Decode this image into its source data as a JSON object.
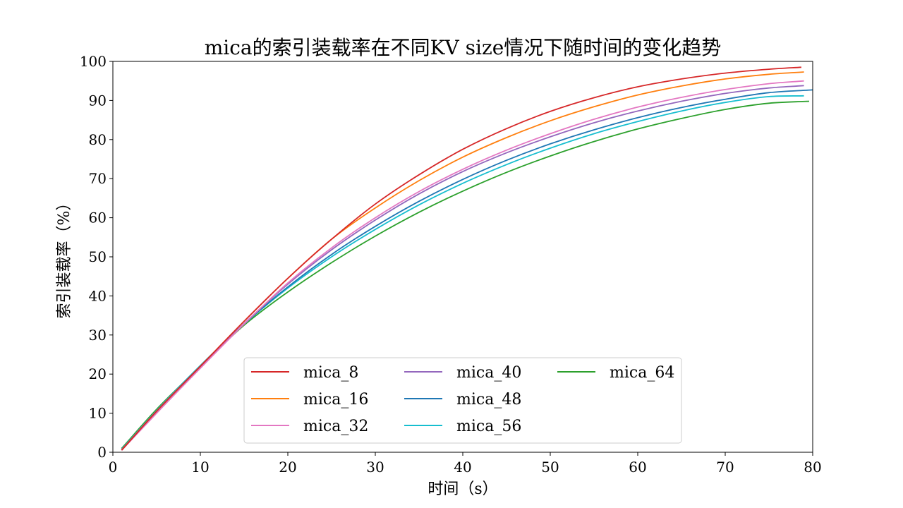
{
  "chart_data": {
    "type": "line",
    "title": "mica的索引装载率在不同KV size情况下随时间的变化趋势",
    "xlabel": "时间（s）",
    "ylabel": "索引装载率（%）",
    "xlim": [
      0,
      80
    ],
    "ylim": [
      0,
      100
    ],
    "xticks": [
      0,
      10,
      20,
      30,
      40,
      50,
      60,
      70,
      80
    ],
    "yticks": [
      0,
      10,
      20,
      30,
      40,
      50,
      60,
      70,
      80,
      90,
      100
    ],
    "grid": false,
    "legend_location": "lower center",
    "legend_columns": 3,
    "x": [
      1,
      5,
      10,
      15,
      20,
      25,
      30,
      35,
      40,
      45,
      50,
      55,
      60,
      65,
      70,
      75,
      79
    ],
    "series": [
      {
        "name": "mica_8",
        "color": "#d62728",
        "end_x": 78.7,
        "values": [
          0.5,
          10.5,
          22.0,
          33.5,
          44.5,
          54.5,
          63.5,
          71.0,
          77.5,
          82.8,
          87.2,
          90.7,
          93.5,
          95.5,
          97.0,
          98.0,
          98.5
        ]
      },
      {
        "name": "mica_16",
        "color": "#ff7f0e",
        "end_x": 79,
        "values": [
          0.6,
          10.5,
          22.0,
          33.5,
          44.5,
          54.5,
          62.5,
          69.5,
          75.5,
          80.5,
          84.8,
          88.4,
          91.4,
          93.7,
          95.5,
          96.7,
          97.3
        ]
      },
      {
        "name": "mica_32",
        "color": "#e377c2",
        "end_x": 79,
        "values": [
          0.5,
          10.0,
          21.5,
          32.8,
          43.3,
          52.3,
          60.0,
          66.7,
          72.4,
          77.3,
          81.5,
          85.2,
          88.3,
          90.8,
          92.8,
          94.3,
          95.0
        ]
      },
      {
        "name": "mica_40",
        "color": "#9467bd",
        "end_x": 79,
        "values": [
          0.6,
          10.3,
          21.8,
          32.9,
          43.0,
          51.8,
          59.4,
          66.1,
          71.8,
          76.6,
          80.7,
          84.3,
          87.3,
          89.8,
          91.8,
          93.2,
          93.8
        ]
      },
      {
        "name": "mica_48",
        "color": "#1f77b4",
        "end_x": 80,
        "values": [
          0.7,
          10.5,
          22.0,
          32.8,
          42.3,
          50.6,
          57.8,
          64.2,
          69.8,
          74.7,
          78.9,
          82.5,
          85.6,
          88.2,
          90.3,
          92.0,
          92.7
        ]
      },
      {
        "name": "mica_56",
        "color": "#17becf",
        "end_x": 79,
        "values": [
          0.8,
          10.7,
          22.2,
          32.8,
          42.0,
          50.0,
          57.0,
          63.3,
          68.8,
          73.6,
          77.8,
          81.5,
          84.6,
          87.3,
          89.5,
          91.0,
          91.2
        ]
      },
      {
        "name": "mica_64",
        "color": "#2ca02c",
        "end_x": 79.6,
        "values": [
          1.0,
          11.0,
          22.0,
          32.5,
          41.0,
          48.5,
          55.3,
          61.4,
          66.8,
          71.6,
          75.8,
          79.5,
          82.7,
          85.4,
          87.7,
          89.3,
          89.8
        ]
      }
    ]
  }
}
